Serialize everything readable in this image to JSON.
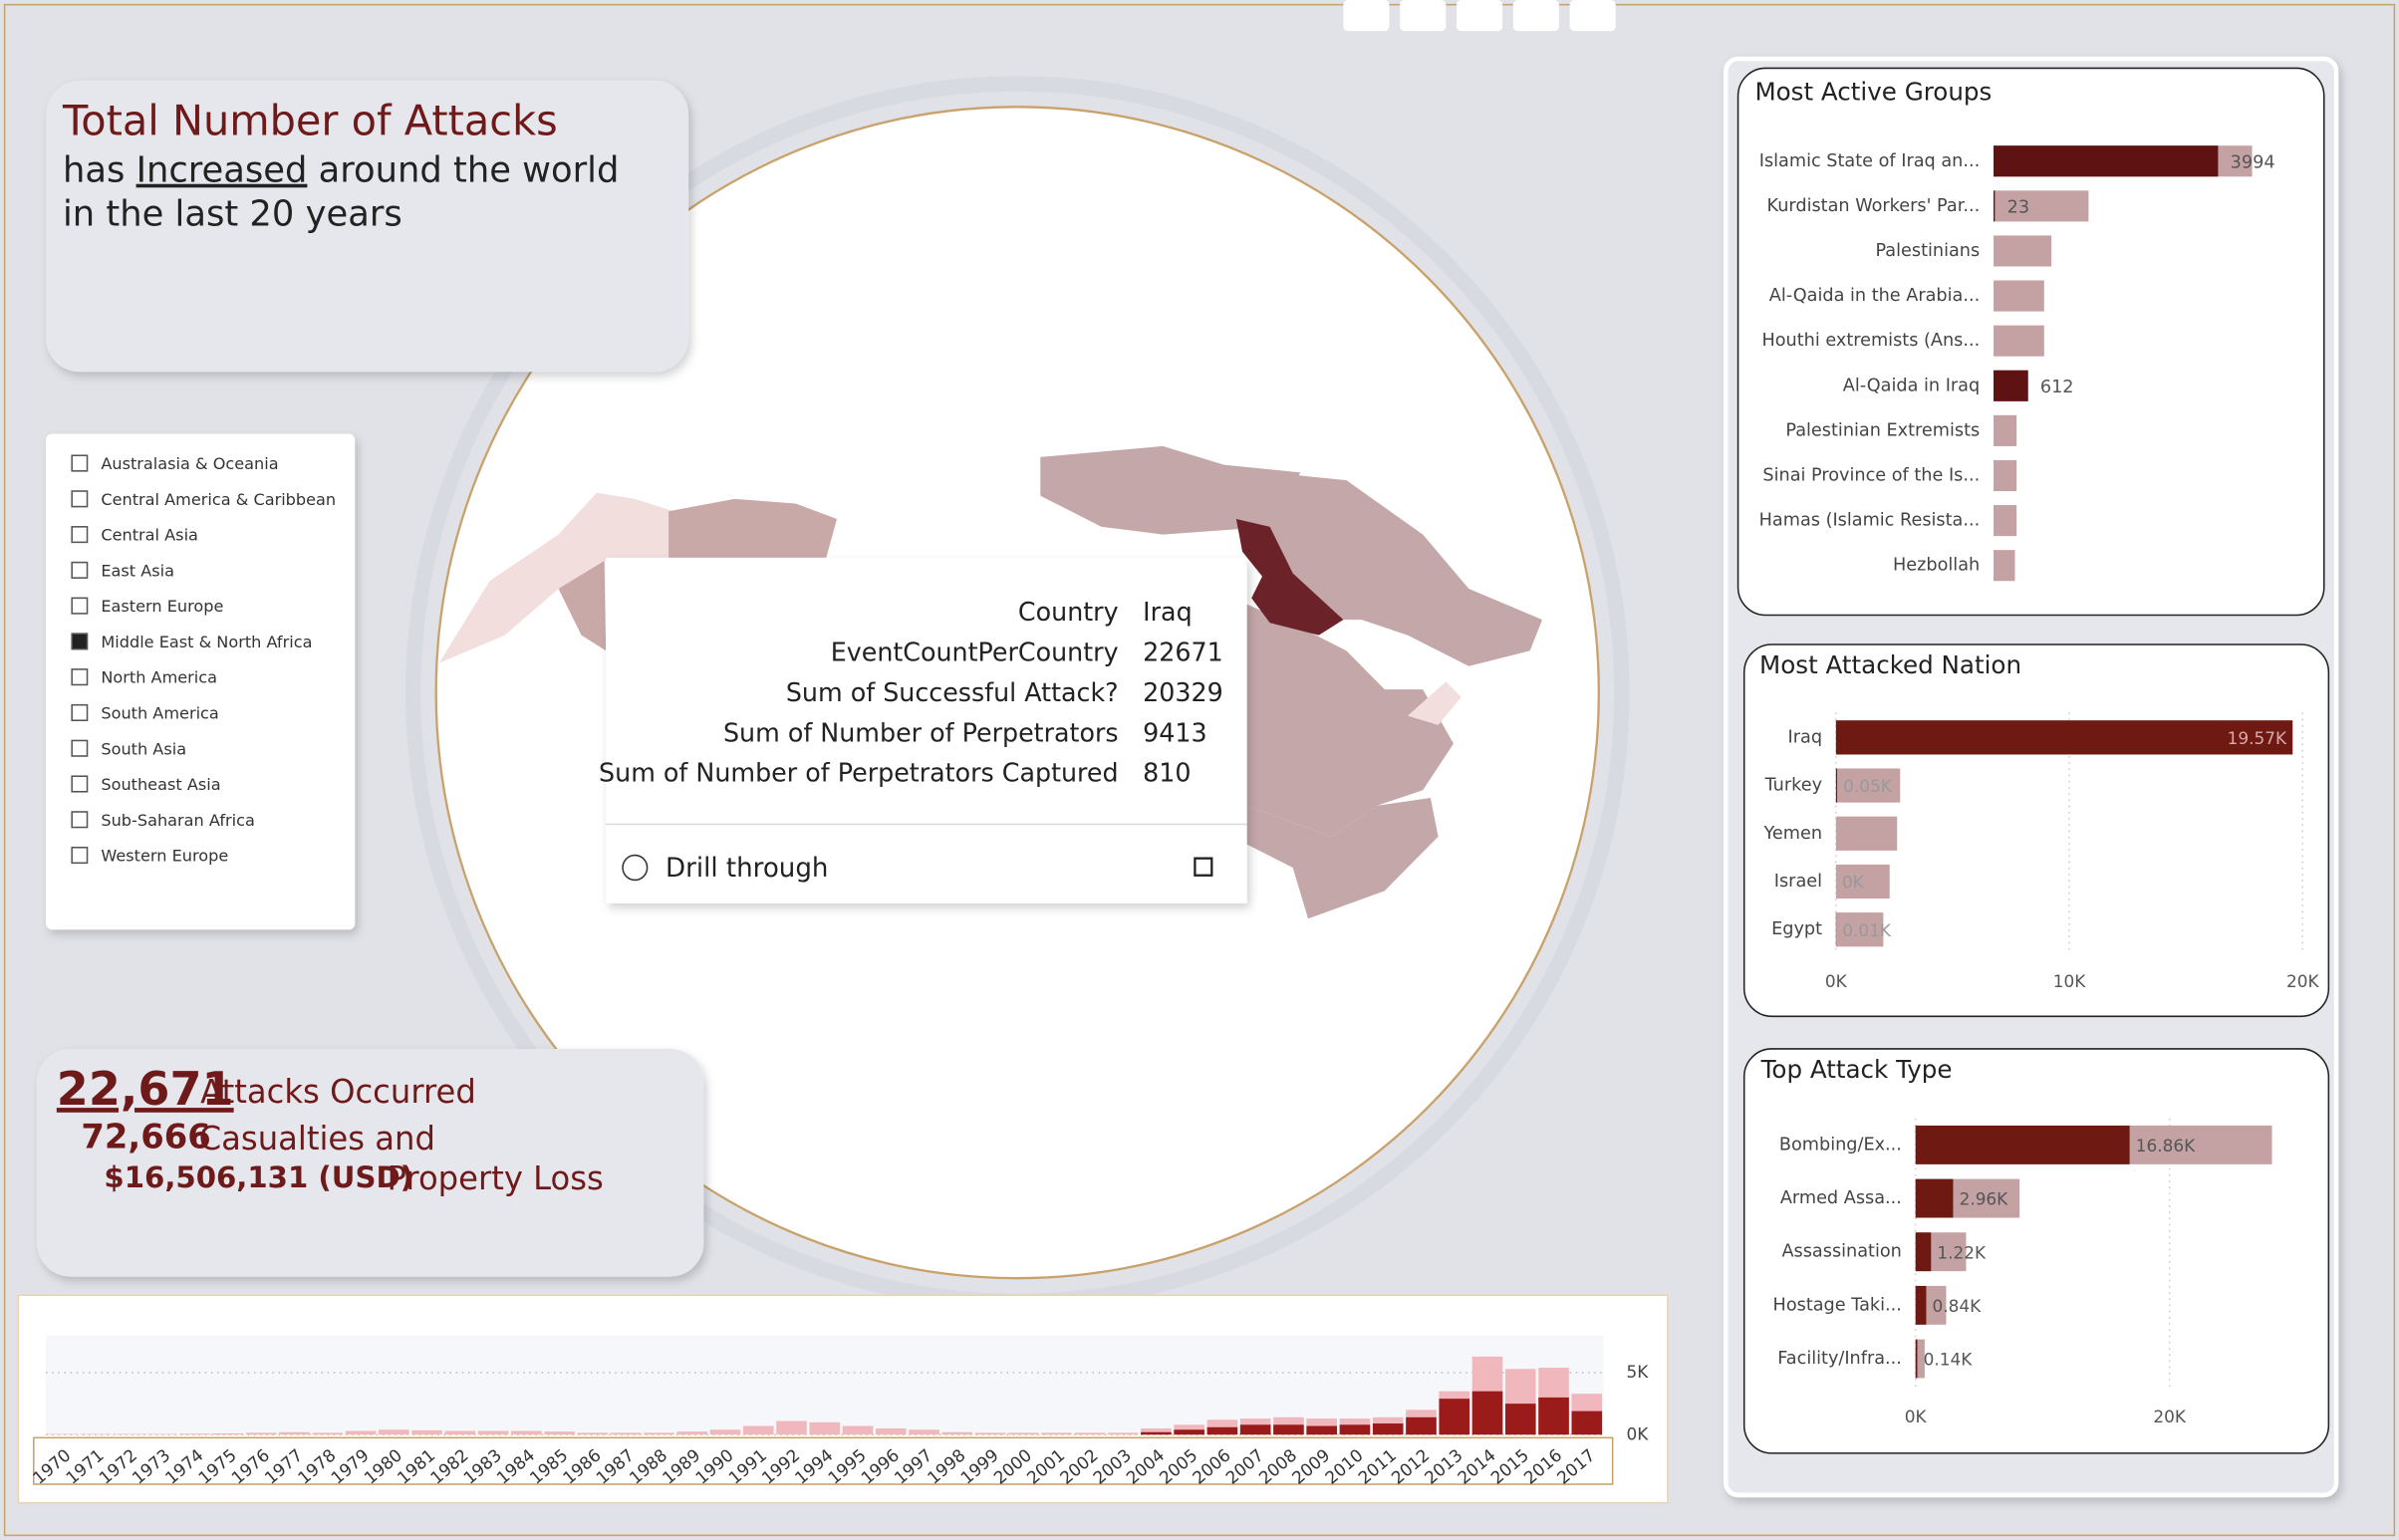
{
  "header": {
    "line1": "Total Number of Attacks",
    "line2_a": "has",
    "line2_b": "Increased",
    "line2_c": "around the world",
    "line3": "in the last 20 years"
  },
  "slicer": {
    "items": [
      "Australasia & Oceania",
      "Central America & Caribbean",
      "Central Asia",
      "East Asia",
      "Eastern Europe",
      "Middle East & North Africa",
      "North America",
      "South America",
      "South Asia",
      "Southeast Asia",
      "Sub-Saharan Africa",
      "Western Europe"
    ],
    "selected": [
      5
    ]
  },
  "summary": {
    "attacks": "22,671",
    "attacks_text": "Attacks Occurred",
    "casualties": "72,666",
    "casualties_text": "Casualties and",
    "loss": "$16,506,131 (USD)",
    "loss_text": "Property Loss"
  },
  "tooltip": {
    "rows": [
      [
        "Country",
        "Iraq"
      ],
      [
        "EventCountPerCountry",
        "22671"
      ],
      [
        "Sum of Successful Attack?",
        "20329"
      ],
      [
        "Sum of Number of Perpetrators",
        "9413"
      ],
      [
        "Sum of Number of Perpetrators Captured",
        "810"
      ]
    ],
    "action": "Drill through"
  },
  "chart_data": [
    {
      "type": "bar",
      "horizontal": true,
      "title": "Most Active Groups",
      "categories": [
        "Islamic State of Iraq an...",
        "Kurdistan Workers' Par...",
        "Palestinians",
        "Al-Qaida in the Arabia...",
        "Houthi extremists (Ans...",
        "Al-Qaida in Iraq",
        "Palestinian Extremists",
        "Sinai Province of the Is...",
        "Hamas (Islamic Resista...",
        "Hezbollah"
      ],
      "series": [
        {
          "color": "#c4a2a3",
          "values": [
            4600,
            1690,
            1030,
            900,
            900,
            620,
            410,
            410,
            410,
            380
          ]
        },
        {
          "color": "#5e1212",
          "values": [
            3994,
            23,
            null,
            null,
            null,
            612,
            null,
            null,
            null,
            null
          ]
        }
      ]
    },
    {
      "type": "bar",
      "horizontal": true,
      "title": "Most Attacked Nation",
      "categories": [
        "Iraq",
        "Turkey",
        "Yemen",
        "Israel",
        "Egypt"
      ],
      "xlim": [
        0,
        20000
      ],
      "xticks": [
        {
          "value": 0,
          "label": "0K"
        },
        {
          "value": 10000,
          "label": "10K"
        },
        {
          "value": 20000,
          "label": "20K"
        }
      ],
      "grid": true,
      "series": [
        {
          "color": "#c4a2a3",
          "values": [
            19570,
            2750,
            2620,
            2300,
            2030
          ]
        },
        {
          "color": "#6e1a12",
          "values": [
            19570,
            50,
            null,
            0,
            10
          ],
          "value_labels": [
            "19.57K",
            "0.05K",
            null,
            "0K",
            "0.01K"
          ]
        }
      ]
    },
    {
      "type": "bar",
      "horizontal": true,
      "title": "Top Attack Type",
      "categories": [
        "Bombing/Ex...",
        "Armed Assa...",
        "Assassination",
        "Hostage Taki...",
        "Facility/Infra..."
      ],
      "xlim": [
        0,
        30000
      ],
      "xticks": [
        {
          "value": 0,
          "label": "0K"
        },
        {
          "value": 20000,
          "label": "20K"
        }
      ],
      "grid": true,
      "series": [
        {
          "color": "#c4a2a3",
          "values": [
            28070,
            8190,
            3980,
            2410,
            720
          ]
        },
        {
          "color": "#6e1a12",
          "values": [
            16860,
            2960,
            1220,
            840,
            140
          ],
          "value_labels": [
            "16.86K",
            "2.96K",
            "1.22K",
            "0.84K",
            "0.14K"
          ]
        }
      ]
    },
    {
      "type": "bar",
      "horizontal": false,
      "categories": [
        "1970",
        "1971",
        "1972",
        "1973",
        "1974",
        "1975",
        "1976",
        "1977",
        "1978",
        "1979",
        "1980",
        "1981",
        "1982",
        "1983",
        "1984",
        "1985",
        "1986",
        "1987",
        "1988",
        "1989",
        "1990",
        "1991",
        "1992",
        "1994",
        "1995",
        "1996",
        "1997",
        "1998",
        "1999",
        "2000",
        "2001",
        "2002",
        "2003",
        "2004",
        "2005",
        "2006",
        "2007",
        "2008",
        "2009",
        "2010",
        "2011",
        "2012",
        "2013",
        "2014",
        "2015",
        "2016",
        "2017"
      ],
      "ylim": [
        0,
        8000
      ],
      "yticks": [
        {
          "value": 0,
          "label": "0K"
        },
        {
          "value": 5000,
          "label": "5K"
        }
      ],
      "grid": true,
      "series": [
        {
          "color": "#f0b8bd",
          "values": [
            50,
            50,
            50,
            50,
            80,
            100,
            150,
            200,
            150,
            300,
            400,
            350,
            300,
            300,
            300,
            250,
            150,
            150,
            150,
            250,
            400,
            700,
            1100,
            1000,
            700,
            500,
            400,
            200,
            150,
            150,
            150,
            150,
            150,
            500,
            800,
            1200,
            1300,
            1400,
            1300,
            1300,
            1400,
            2000,
            3500,
            6300,
            5300,
            5400,
            3300
          ]
        },
        {
          "color": "#9b1b1b",
          "values": [
            0,
            0,
            0,
            0,
            0,
            0,
            0,
            0,
            0,
            0,
            0,
            0,
            0,
            0,
            0,
            0,
            0,
            0,
            0,
            0,
            0,
            0,
            0,
            0,
            0,
            0,
            0,
            0,
            0,
            0,
            0,
            0,
            0,
            200,
            400,
            600,
            800,
            800,
            700,
            800,
            900,
            1400,
            2900,
            3500,
            2500,
            3000,
            1900
          ]
        }
      ]
    }
  ]
}
